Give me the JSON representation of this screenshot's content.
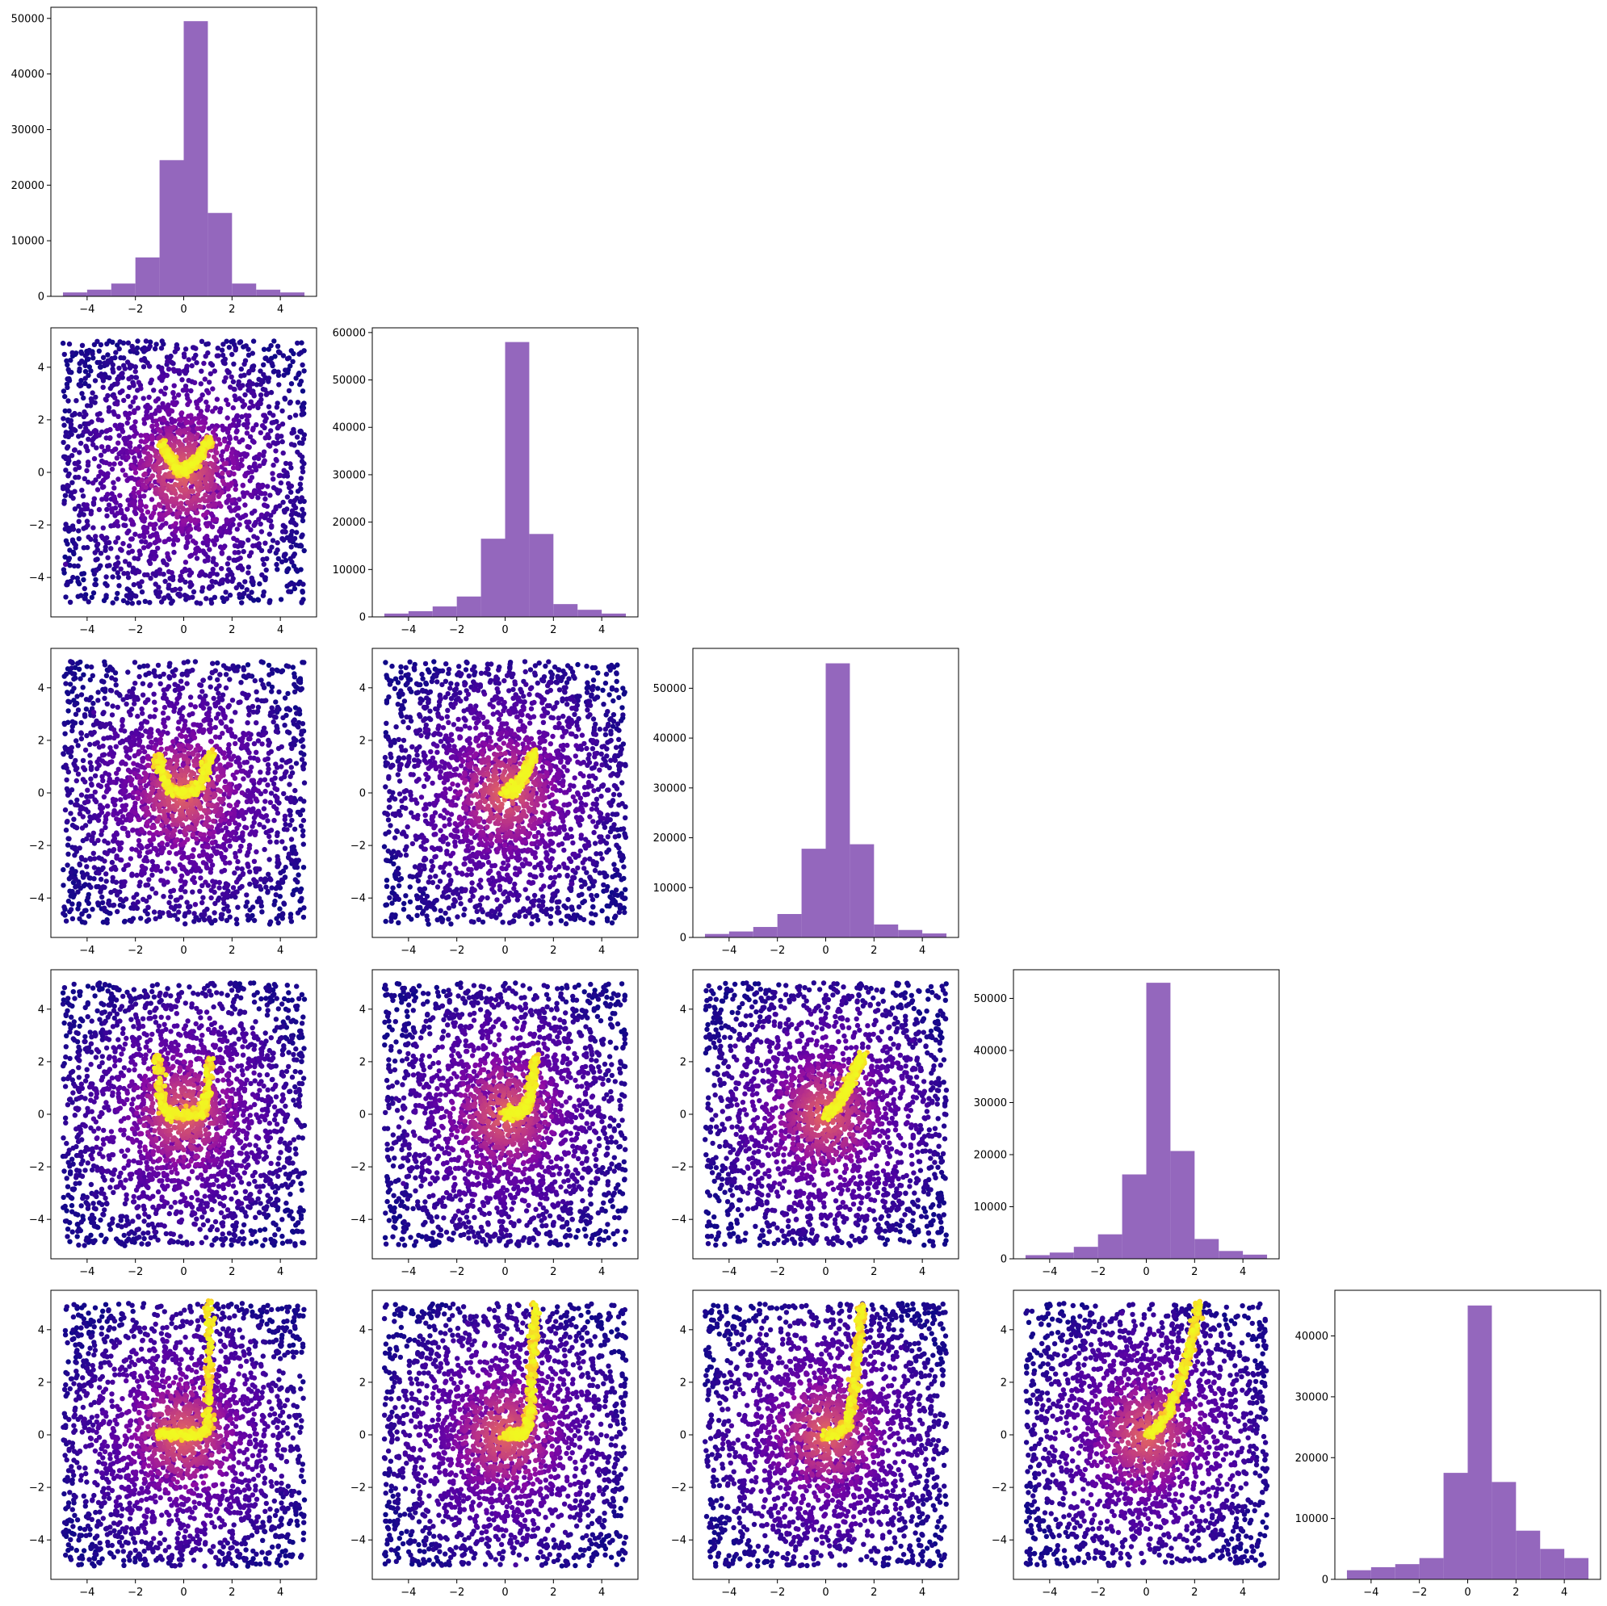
{
  "figure": {
    "colors": {
      "hist_fill": "#9467bd",
      "frame": "#000000",
      "background": "#ffffff",
      "colormap": "plasma",
      "colormap_low": "#0d0887",
      "colormap_high": "#f0f921"
    }
  },
  "chart_data": [
    {
      "id": "hist-0",
      "type": "bar",
      "position": "row 1, column 1 (diagonal)",
      "bin_edges": [
        -5,
        -4,
        -3,
        -2,
        -1,
        0,
        1,
        2,
        3,
        4,
        5
      ],
      "values": [
        700,
        1200,
        2300,
        7000,
        24500,
        49500,
        15000,
        2300,
        1200,
        700
      ],
      "xlim": [
        -5.5,
        5.5
      ],
      "ylim": [
        0,
        52000
      ],
      "xticks": [
        -4,
        -2,
        0,
        2,
        4
      ],
      "yticks": [
        0,
        10000,
        20000,
        30000,
        40000,
        50000
      ],
      "xtick_labels": [
        "−4",
        "−2",
        "0",
        "2",
        "4"
      ],
      "ytick_labels": [
        "0",
        "10000",
        "20000",
        "30000",
        "40000",
        "50000"
      ]
    },
    {
      "id": "hist-1",
      "type": "bar",
      "position": "row 2, column 2 (diagonal)",
      "bin_edges": [
        -5,
        -4,
        -3,
        -2,
        -1,
        0,
        1,
        2,
        3,
        4,
        5
      ],
      "values": [
        700,
        1200,
        2200,
        4300,
        16500,
        58000,
        17500,
        2700,
        1500,
        700
      ],
      "xlim": [
        -5.5,
        5.5
      ],
      "ylim": [
        0,
        61000
      ],
      "xticks": [
        -4,
        -2,
        0,
        2,
        4
      ],
      "yticks": [
        0,
        10000,
        20000,
        30000,
        40000,
        50000,
        60000
      ],
      "xtick_labels": [
        "−4",
        "−2",
        "0",
        "2",
        "4"
      ],
      "ytick_labels": [
        "0",
        "10000",
        "20000",
        "30000",
        "40000",
        "50000",
        "60000"
      ]
    },
    {
      "id": "hist-2",
      "type": "bar",
      "position": "row 3, column 3 (diagonal)",
      "bin_edges": [
        -5,
        -4,
        -3,
        -2,
        -1,
        0,
        1,
        2,
        3,
        4,
        5
      ],
      "values": [
        700,
        1200,
        2100,
        4700,
        17800,
        55000,
        18700,
        2600,
        1500,
        800
      ],
      "xlim": [
        -5.5,
        5.5
      ],
      "ylim": [
        0,
        58000
      ],
      "xticks": [
        -4,
        -2,
        0,
        2,
        4
      ],
      "yticks": [
        0,
        10000,
        20000,
        30000,
        40000,
        50000
      ],
      "xtick_labels": [
        "−4",
        "−2",
        "0",
        "2",
        "4"
      ],
      "ytick_labels": [
        "0",
        "10000",
        "20000",
        "30000",
        "40000",
        "50000"
      ]
    },
    {
      "id": "hist-3",
      "type": "bar",
      "position": "row 4, column 4 (diagonal)",
      "bin_edges": [
        -5,
        -4,
        -3,
        -2,
        -1,
        0,
        1,
        2,
        3,
        4,
        5
      ],
      "values": [
        700,
        1200,
        2300,
        4700,
        16200,
        53000,
        20700,
        3800,
        1500,
        800
      ],
      "xlim": [
        -5.5,
        5.5
      ],
      "ylim": [
        0,
        55500
      ],
      "xticks": [
        -4,
        -2,
        0,
        2,
        4
      ],
      "yticks": [
        0,
        10000,
        20000,
        30000,
        40000,
        50000
      ],
      "xtick_labels": [
        "−4",
        "−2",
        "0",
        "2",
        "4"
      ],
      "ytick_labels": [
        "0",
        "10000",
        "20000",
        "30000",
        "40000",
        "50000"
      ]
    },
    {
      "id": "hist-4",
      "type": "bar",
      "position": "row 5, column 5 (diagonal)",
      "bin_edges": [
        -5,
        -4,
        -3,
        -2,
        -1,
        0,
        1,
        2,
        3,
        4,
        5
      ],
      "values": [
        1500,
        2000,
        2500,
        3500,
        17500,
        45000,
        16000,
        8000,
        5000,
        3500
      ],
      "xlim": [
        -5.5,
        5.5
      ],
      "ylim": [
        0,
        47500
      ],
      "xticks": [
        -4,
        -2,
        0,
        2,
        4
      ],
      "yticks": [
        0,
        10000,
        20000,
        30000,
        40000
      ],
      "xtick_labels": [
        "−4",
        "−2",
        "0",
        "2",
        "4"
      ],
      "ytick_labels": [
        "0",
        "10000",
        "20000",
        "30000",
        "40000"
      ]
    },
    {
      "id": "scatter-1-0",
      "type": "scatter",
      "position": "row 2, column 1",
      "x_variable": 0,
      "y_variable": 1,
      "colored_by": "density (plasma colormap)",
      "bright_ridge": {
        "x": [
          -0.9,
          -0.6,
          -0.3,
          0,
          0.3,
          0.6,
          0.9,
          1.1
        ],
        "y": [
          1.1,
          0.6,
          0.2,
          0.0,
          0.2,
          0.5,
          1.0,
          1.2
        ]
      },
      "xlim": [
        -5.5,
        5.5
      ],
      "ylim": [
        -5.5,
        5.5
      ],
      "xticks": [
        -4,
        -2,
        0,
        2,
        4
      ],
      "yticks": [
        -4,
        -2,
        0,
        2,
        4
      ],
      "xtick_labels": [
        "−4",
        "−2",
        "0",
        "2",
        "4"
      ],
      "ytick_labels": [
        "−4",
        "−2",
        "0",
        "2",
        "4"
      ]
    },
    {
      "id": "scatter-2-0",
      "type": "scatter",
      "position": "row 3, column 1",
      "x_variable": 0,
      "y_variable": 2,
      "colored_by": "density (plasma colormap)",
      "bright_ridge": {
        "x": [
          -1.1,
          -0.9,
          -0.6,
          -0.3,
          0,
          0.3,
          0.6,
          0.9,
          1.1
        ],
        "y": [
          1.5,
          0.7,
          0.2,
          0.05,
          0.0,
          0.05,
          0.2,
          0.8,
          1.5
        ]
      },
      "xlim": [
        -5.5,
        5.5
      ],
      "ylim": [
        -5.5,
        5.5
      ],
      "xticks": [
        -4,
        -2,
        0,
        2,
        4
      ],
      "yticks": [
        -4,
        -2,
        0,
        2,
        4
      ],
      "xtick_labels": [
        "−4",
        "−2",
        "0",
        "2",
        "4"
      ],
      "ytick_labels": [
        "−4",
        "−2",
        "0",
        "2",
        "4"
      ]
    },
    {
      "id": "scatter-2-1",
      "type": "scatter",
      "position": "row 3, column 2",
      "x_variable": 1,
      "y_variable": 2,
      "colored_by": "density (plasma colormap)",
      "bright_ridge": {
        "x": [
          0,
          0.3,
          0.6,
          0.9,
          1.2
        ],
        "y": [
          0.0,
          0.1,
          0.4,
          0.9,
          1.5
        ]
      },
      "xlim": [
        -5.5,
        5.5
      ],
      "ylim": [
        -5.5,
        5.5
      ],
      "xticks": [
        -4,
        -2,
        0,
        2,
        4
      ],
      "yticks": [
        -4,
        -2,
        0,
        2,
        4
      ],
      "xtick_labels": [
        "−4",
        "−2",
        "0",
        "2",
        "4"
      ],
      "ytick_labels": [
        "−4",
        "−2",
        "0",
        "2",
        "4"
      ]
    },
    {
      "id": "scatter-3-0",
      "type": "scatter",
      "position": "row 4, column 1",
      "x_variable": 0,
      "y_variable": 3,
      "colored_by": "density (plasma colormap)",
      "bright_ridge": {
        "x": [
          -1.1,
          -1.0,
          -0.8,
          -0.5,
          0,
          0.5,
          0.8,
          1.0,
          1.1
        ],
        "y": [
          2.2,
          0.8,
          0.1,
          0.0,
          0.0,
          0.0,
          0.1,
          0.8,
          2.2
        ]
      },
      "xlim": [
        -5.5,
        5.5
      ],
      "ylim": [
        -5.5,
        5.5
      ],
      "xticks": [
        -4,
        -2,
        0,
        2,
        4
      ],
      "yticks": [
        -4,
        -2,
        0,
        2,
        4
      ],
      "xtick_labels": [
        "−4",
        "−2",
        "0",
        "2",
        "4"
      ],
      "ytick_labels": [
        "−4",
        "−2",
        "0",
        "2",
        "4"
      ]
    },
    {
      "id": "scatter-3-1",
      "type": "scatter",
      "position": "row 4, column 2",
      "x_variable": 1,
      "y_variable": 3,
      "colored_by": "density (plasma colormap)",
      "bright_ridge": {
        "x": [
          0,
          0.5,
          0.8,
          1.0,
          1.15,
          1.25
        ],
        "y": [
          0.0,
          0.05,
          0.2,
          0.6,
          1.3,
          2.2
        ]
      },
      "xlim": [
        -5.5,
        5.5
      ],
      "ylim": [
        -5.5,
        5.5
      ],
      "xticks": [
        -4,
        -2,
        0,
        2,
        4
      ],
      "yticks": [
        -4,
        -2,
        0,
        2,
        4
      ],
      "xtick_labels": [
        "−4",
        "−2",
        "0",
        "2",
        "4"
      ],
      "ytick_labels": [
        "−4",
        "−2",
        "0",
        "2",
        "4"
      ]
    },
    {
      "id": "scatter-3-2",
      "type": "scatter",
      "position": "row 4, column 3",
      "x_variable": 2,
      "y_variable": 3,
      "colored_by": "density (plasma colormap)",
      "bright_ridge": {
        "x": [
          0,
          0.3,
          0.6,
          0.9,
          1.2,
          1.5
        ],
        "y": [
          0.0,
          0.2,
          0.5,
          1.0,
          1.6,
          2.2
        ]
      },
      "xlim": [
        -5.5,
        5.5
      ],
      "ylim": [
        -5.5,
        5.5
      ],
      "xticks": [
        -4,
        -2,
        0,
        2,
        4
      ],
      "yticks": [
        -4,
        -2,
        0,
        2,
        4
      ],
      "xtick_labels": [
        "−4",
        "−2",
        "0",
        "2",
        "4"
      ],
      "ytick_labels": [
        "−4",
        "−2",
        "0",
        "2",
        "4"
      ]
    },
    {
      "id": "scatter-4-0",
      "type": "scatter",
      "position": "row 5, column 1",
      "x_variable": 0,
      "y_variable": 4,
      "colored_by": "density (plasma colormap)",
      "bright_ridge": {
        "x": [
          1.05,
          1.05,
          1.0,
          0.6,
          0,
          -0.6,
          -1.0
        ],
        "y": [
          5.0,
          2.0,
          0.2,
          0.0,
          0.0,
          0.0,
          0.1
        ]
      },
      "xlim": [
        -5.5,
        5.5
      ],
      "ylim": [
        -5.5,
        5.5
      ],
      "xticks": [
        -4,
        -2,
        0,
        2,
        4
      ],
      "yticks": [
        -4,
        -2,
        0,
        2,
        4
      ],
      "xtick_labels": [
        "−4",
        "−2",
        "0",
        "2",
        "4"
      ],
      "ytick_labels": [
        "−4",
        "−2",
        "0",
        "2",
        "4"
      ]
    },
    {
      "id": "scatter-4-1",
      "type": "scatter",
      "position": "row 5, column 2",
      "x_variable": 1,
      "y_variable": 4,
      "colored_by": "density (plasma colormap)",
      "bright_ridge": {
        "x": [
          0,
          0.6,
          0.9,
          1.05,
          1.15,
          1.25
        ],
        "y": [
          0.0,
          0.0,
          0.2,
          1.0,
          2.8,
          5.0
        ]
      },
      "xlim": [
        -5.5,
        5.5
      ],
      "ylim": [
        -5.5,
        5.5
      ],
      "xticks": [
        -4,
        -2,
        0,
        2,
        4
      ],
      "yticks": [
        -4,
        -2,
        0,
        2,
        4
      ],
      "xtick_labels": [
        "−4",
        "−2",
        "0",
        "2",
        "4"
      ],
      "ytick_labels": [
        "−4",
        "−2",
        "0",
        "2",
        "4"
      ]
    },
    {
      "id": "scatter-4-2",
      "type": "scatter",
      "position": "row 5, column 3",
      "x_variable": 2,
      "y_variable": 4,
      "colored_by": "density (plasma colormap)",
      "bright_ridge": {
        "x": [
          0,
          0.5,
          0.9,
          1.15,
          1.35,
          1.5
        ],
        "y": [
          0.0,
          0.05,
          0.4,
          1.5,
          3.2,
          5.0
        ]
      },
      "xlim": [
        -5.5,
        5.5
      ],
      "ylim": [
        -5.5,
        5.5
      ],
      "xticks": [
        -4,
        -2,
        0,
        2,
        4
      ],
      "yticks": [
        -4,
        -2,
        0,
        2,
        4
      ],
      "xtick_labels": [
        "−4",
        "−2",
        "0",
        "2",
        "4"
      ],
      "ytick_labels": [
        "−4",
        "−2",
        "0",
        "2",
        "4"
      ]
    },
    {
      "id": "scatter-4-3",
      "type": "scatter",
      "position": "row 5, column 4",
      "x_variable": 3,
      "y_variable": 4,
      "colored_by": "density (plasma colormap)",
      "bright_ridge": {
        "x": [
          0,
          0.4,
          0.8,
          1.2,
          1.6,
          1.9,
          2.2
        ],
        "y": [
          0.0,
          0.2,
          0.7,
          1.5,
          2.6,
          3.8,
          5.0
        ]
      },
      "xlim": [
        -5.5,
        5.5
      ],
      "ylim": [
        -5.5,
        5.5
      ],
      "xticks": [
        -4,
        -2,
        0,
        2,
        4
      ],
      "yticks": [
        -4,
        -2,
        0,
        2,
        4
      ],
      "xtick_labels": [
        "−4",
        "−2",
        "0",
        "2",
        "4"
      ],
      "ytick_labels": [
        "−4",
        "−2",
        "0",
        "2",
        "4"
      ]
    }
  ]
}
